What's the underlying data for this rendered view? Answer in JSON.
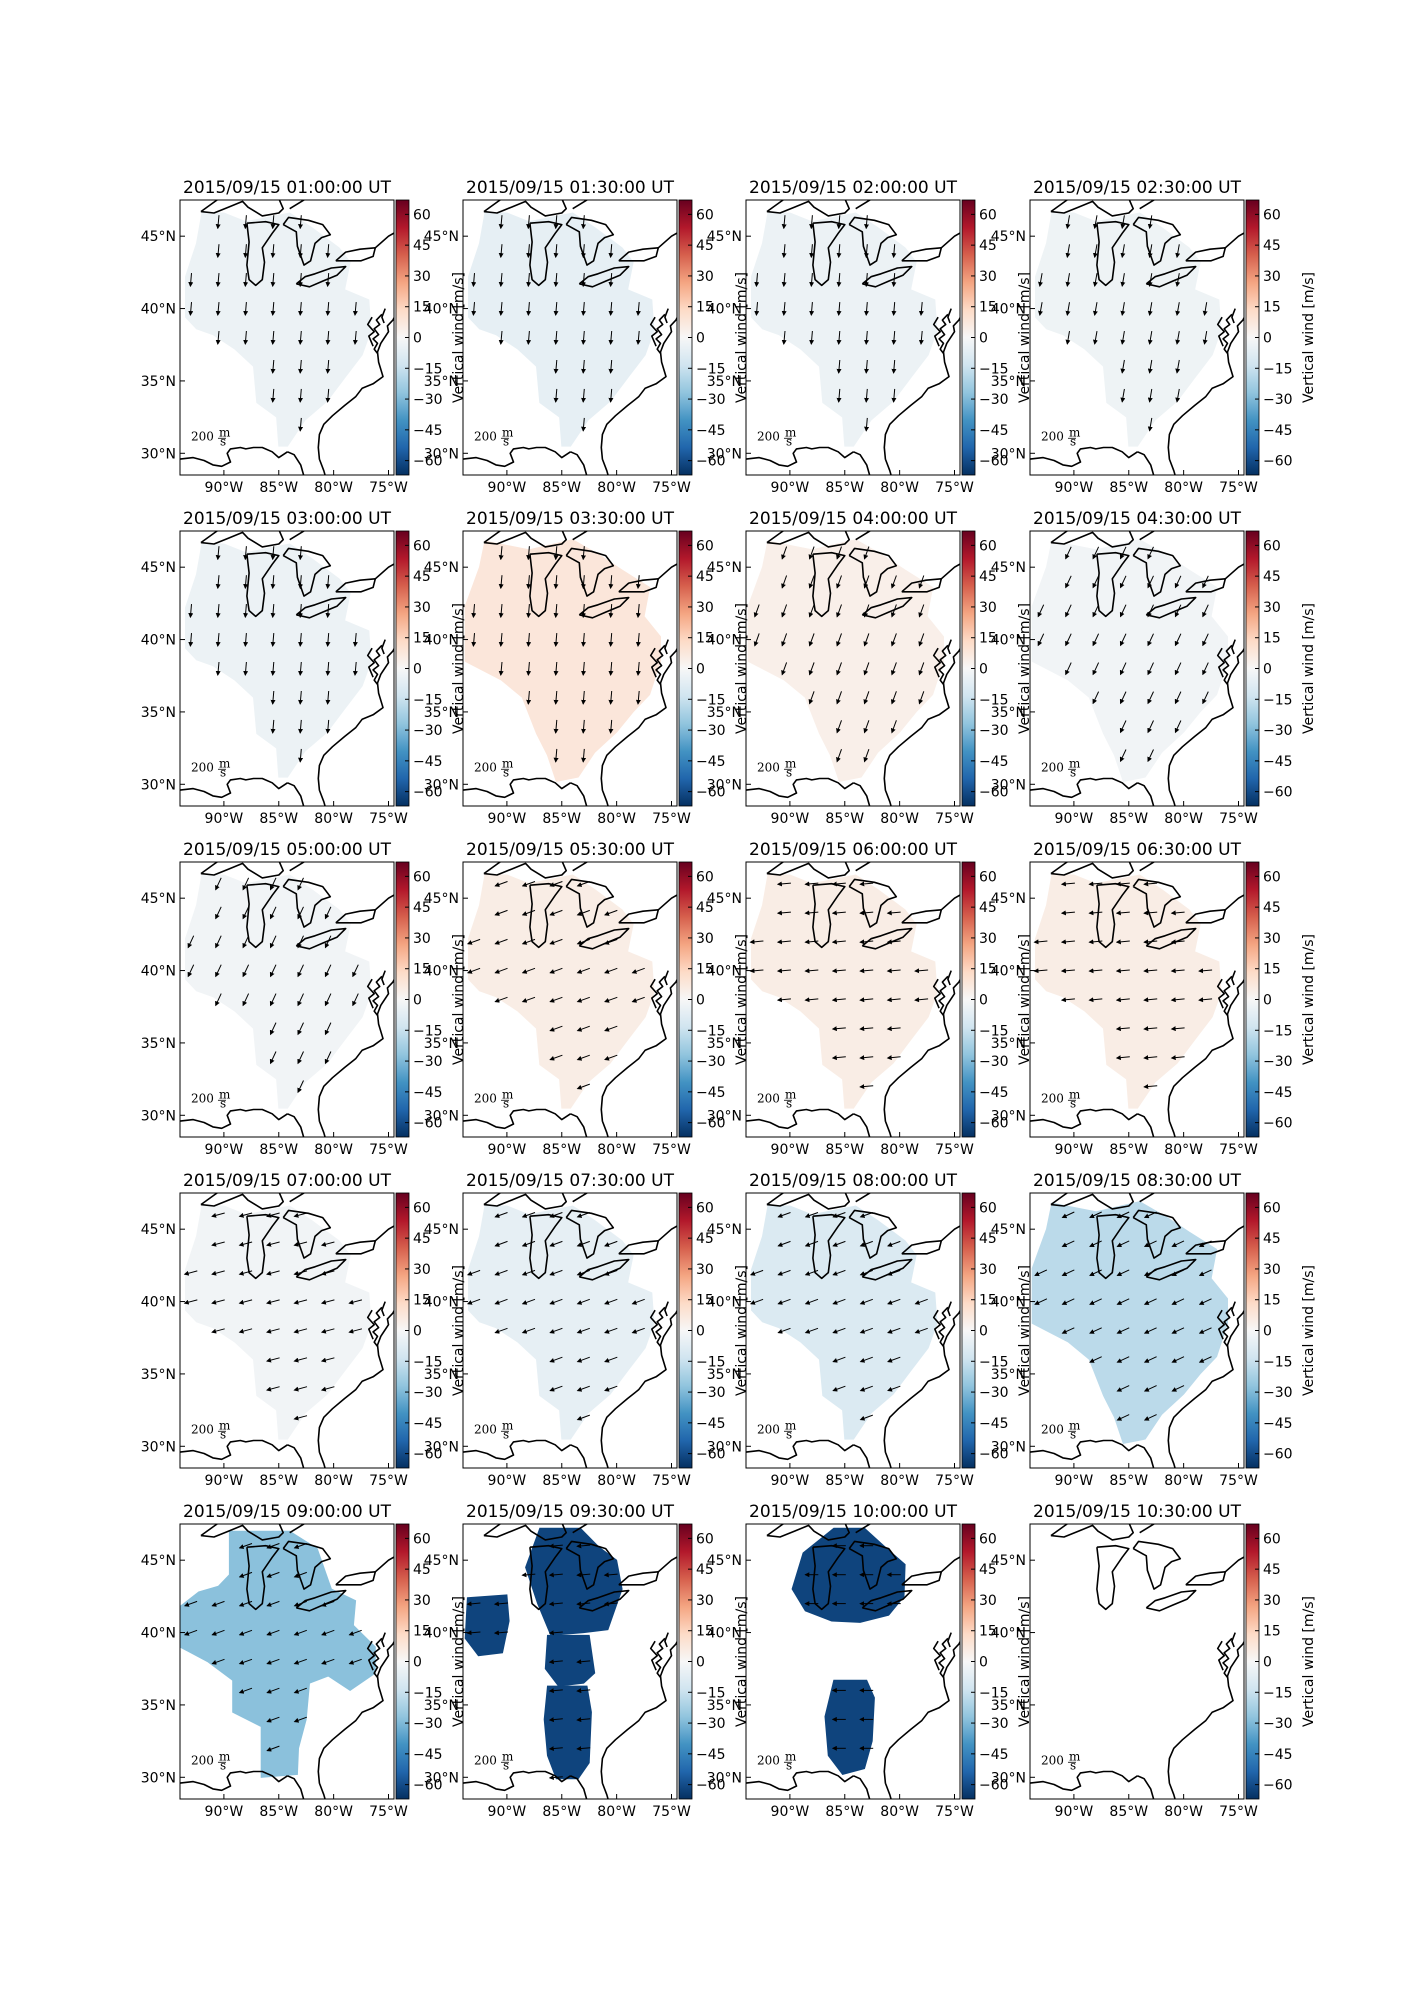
{
  "figure": {
    "panels": [
      {
        "title": "2015/09/15 01:00:00 UT",
        "vertical_wind": -4,
        "wind_dir": 185,
        "region": "full"
      },
      {
        "title": "2015/09/15 01:30:00 UT",
        "vertical_wind": -6,
        "wind_dir": 185,
        "region": "full"
      },
      {
        "title": "2015/09/15 02:00:00 UT",
        "vertical_wind": -4,
        "wind_dir": 185,
        "region": "full"
      },
      {
        "title": "2015/09/15 02:30:00 UT",
        "vertical_wind": -3,
        "wind_dir": 190,
        "region": "full"
      },
      {
        "title": "2015/09/15 03:00:00 UT",
        "vertical_wind": -4,
        "wind_dir": 185,
        "region": "full"
      },
      {
        "title": "2015/09/15 03:30:00 UT",
        "vertical_wind": 8,
        "wind_dir": 185,
        "region": "full_wide"
      },
      {
        "title": "2015/09/15 04:00:00 UT",
        "vertical_wind": 4,
        "wind_dir": 200,
        "region": "full_wide"
      },
      {
        "title": "2015/09/15 04:30:00 UT",
        "vertical_wind": -2,
        "wind_dir": 205,
        "region": "full_wide"
      },
      {
        "title": "2015/09/15 05:00:00 UT",
        "vertical_wind": -2,
        "wind_dir": 205,
        "region": "full"
      },
      {
        "title": "2015/09/15 05:30:00 UT",
        "vertical_wind": 5,
        "wind_dir": 250,
        "region": "full"
      },
      {
        "title": "2015/09/15 06:00:00 UT",
        "vertical_wind": 5,
        "wind_dir": 265,
        "region": "full"
      },
      {
        "title": "2015/09/15 06:30:00 UT",
        "vertical_wind": 5,
        "wind_dir": 265,
        "region": "full"
      },
      {
        "title": "2015/09/15 07:00:00 UT",
        "vertical_wind": -2,
        "wind_dir": 255,
        "region": "full"
      },
      {
        "title": "2015/09/15 07:30:00 UT",
        "vertical_wind": -6,
        "wind_dir": 250,
        "region": "full"
      },
      {
        "title": "2015/09/15 08:00:00 UT",
        "vertical_wind": -10,
        "wind_dir": 250,
        "region": "full"
      },
      {
        "title": "2015/09/15 08:30:00 UT",
        "vertical_wind": -18,
        "wind_dir": 245,
        "region": "full_wide"
      },
      {
        "title": "2015/09/15 09:00:00 UT",
        "vertical_wind": -28,
        "wind_dir": 250,
        "region": "blob_large"
      },
      {
        "title": "2015/09/15 09:30:00 UT",
        "vertical_wind": -62,
        "wind_dir": 265,
        "region": "blobs3"
      },
      {
        "title": "2015/09/15 10:00:00 UT",
        "vertical_wind": -62,
        "wind_dir": 270,
        "region": "blobs2"
      },
      {
        "title": "2015/09/15 10:30:00 UT",
        "vertical_wind": null,
        "wind_dir": null,
        "region": "none"
      }
    ],
    "lon_ticks": [
      "90°W",
      "85°W",
      "80°W",
      "75°W"
    ],
    "lat_ticks": [
      "45°N",
      "40°N",
      "35°N",
      "30°N"
    ],
    "colorbar": {
      "label": "Vertical wind [m/s]",
      "min": -67,
      "max": 67,
      "ticks": [
        60,
        45,
        30,
        15,
        0,
        -15,
        -30,
        -45,
        -60
      ],
      "tick_labels": [
        "60",
        "45",
        "30",
        "15",
        "0",
        "−15",
        "−30",
        "−45",
        "−60"
      ],
      "colormap": "RdBu_r"
    },
    "scale_arrow": {
      "text": "200",
      "unit_num": "m",
      "unit_den": "s"
    }
  }
}
